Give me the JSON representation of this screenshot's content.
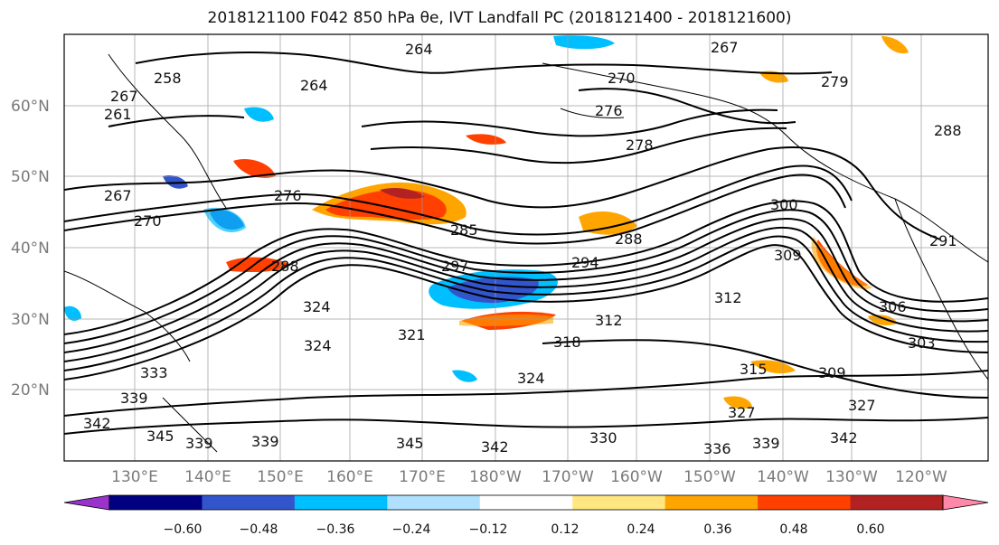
{
  "title": "2018121100 F042 850 hPa θe, IVT Landfall PC (2018121400 - 2018121600)",
  "lat_labels": [
    "60°N",
    "50°N",
    "40°N",
    "30°N",
    "20°N"
  ],
  "lon_labels": [
    "130°E",
    "140°E",
    "150°E",
    "160°E",
    "170°E",
    "180°W",
    "170°W",
    "160°W",
    "150°W",
    "140°W",
    "130°W",
    "120°W"
  ],
  "colorbar": {
    "ticks": [
      "−0.60",
      "−0.48",
      "−0.36",
      "−0.24",
      "−0.12",
      "0.12",
      "0.24",
      "0.36",
      "0.48",
      "0.60"
    ],
    "colors": [
      "#9933cc",
      "#000080",
      "#3355cc",
      "#00bfff",
      "#b0e0ff",
      "#ffffff",
      "#ffe680",
      "#ffa500",
      "#ff4000",
      "#b22222",
      "#ff88aa"
    ]
  },
  "contour_labels": [
    "264",
    "267",
    "276",
    "279",
    "288",
    "258",
    "261",
    "264",
    "270",
    "267",
    "270",
    "276",
    "285",
    "288",
    "297",
    "294",
    "300",
    "309",
    "312",
    "312",
    "306",
    "303",
    "318",
    "324",
    "324",
    "321",
    "327",
    "333",
    "339",
    "342",
    "345",
    "339",
    "339",
    "345",
    "342",
    "330",
    "336",
    "339",
    "342",
    "315",
    "309",
    "327",
    "324",
    "291",
    "288",
    "267",
    "278"
  ]
}
